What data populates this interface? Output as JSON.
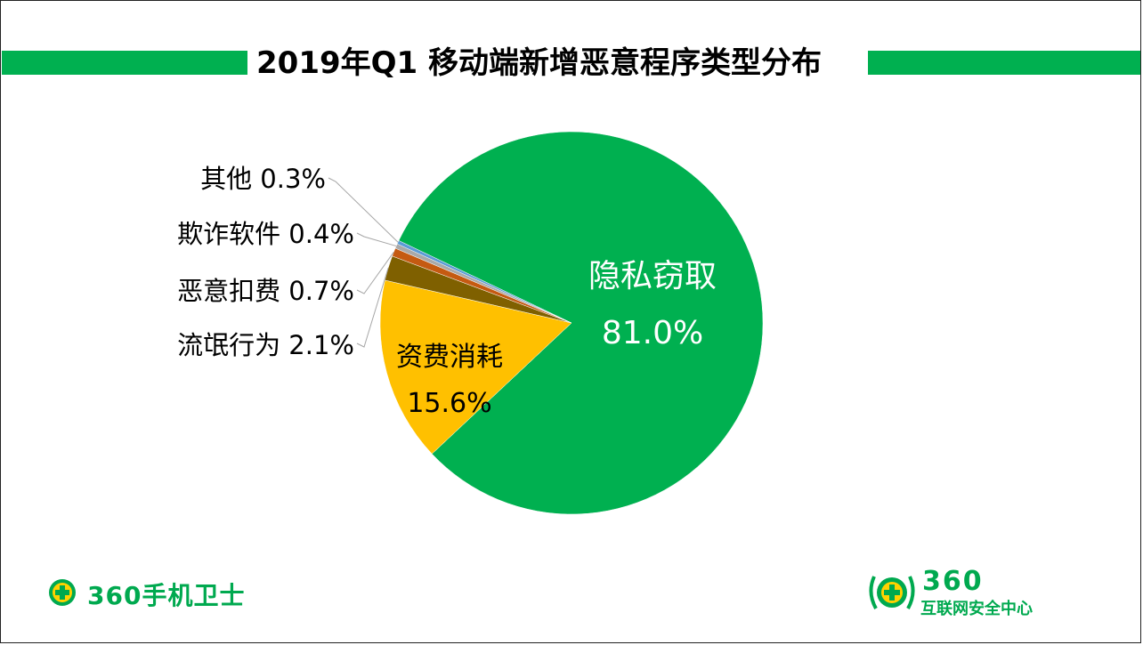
{
  "title": "2019年Q1 移动端新增恶意程序类型分布",
  "chart_data": {
    "type": "pie",
    "slices": [
      {
        "name": "隐私窃取",
        "value": 81.0,
        "label": "81.0%",
        "color": "#00b050"
      },
      {
        "name": "资费消耗",
        "value": 15.6,
        "label": "15.6%",
        "color": "#ffc000"
      },
      {
        "name": "流氓行为",
        "value": 2.1,
        "label": "流氓行为 2.1%",
        "color": "#7f6000"
      },
      {
        "name": "恶意扣费",
        "value": 0.7,
        "label": "恶意扣费 0.7%",
        "color": "#c55a11"
      },
      {
        "name": "欺诈软件",
        "value": 0.4,
        "label": "欺诈软件 0.4%",
        "color": "#a9a9a9"
      },
      {
        "name": "其他",
        "value": 0.3,
        "label": "其他 0.3%",
        "color": "#5b9bd5"
      }
    ]
  },
  "logos": {
    "left_brand": "360手机卫士",
    "right_number": "360",
    "right_sub": "互联网安全中心"
  }
}
